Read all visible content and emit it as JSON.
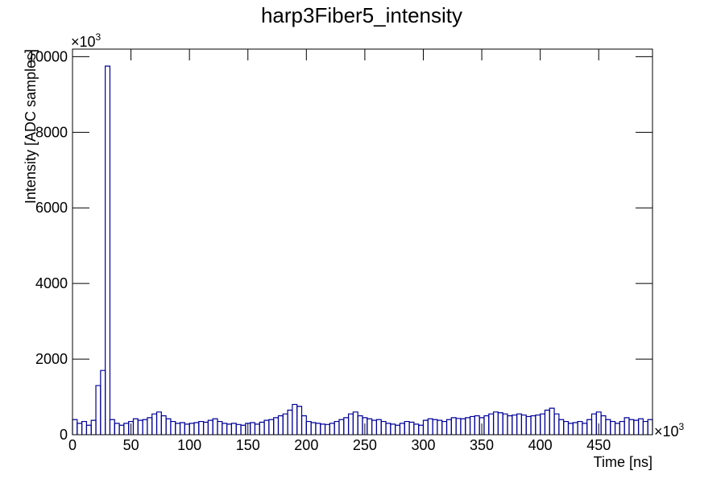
{
  "chart_data": {
    "type": "histogram",
    "title": "harp3Fiber5_intensity",
    "x_label": "Time [ns]",
    "y_label": "Intensity [ADC samples]",
    "x_multiplier": {
      "base": "×10",
      "exponent": "3"
    },
    "y_multiplier": {
      "base": "×10",
      "exponent": "3"
    },
    "color": "#000099",
    "xlim": [
      0,
      496
    ],
    "ylim": [
      0,
      10200
    ],
    "xticks": [
      0,
      50,
      100,
      150,
      200,
      250,
      300,
      350,
      400,
      450
    ],
    "yticks": [
      0,
      2000,
      4000,
      6000,
      8000,
      10000
    ],
    "bins": [
      0,
      4,
      8,
      12,
      16,
      20,
      24,
      28,
      32,
      36,
      40,
      44,
      48,
      52,
      56,
      60,
      64,
      68,
      72,
      76,
      80,
      84,
      88,
      92,
      96,
      100,
      104,
      108,
      112,
      116,
      120,
      124,
      128,
      132,
      136,
      140,
      144,
      148,
      152,
      156,
      160,
      164,
      168,
      172,
      176,
      180,
      184,
      188,
      192,
      196,
      200,
      204,
      208,
      212,
      216,
      220,
      224,
      228,
      232,
      236,
      240,
      244,
      248,
      252,
      256,
      260,
      264,
      268,
      272,
      276,
      280,
      284,
      288,
      292,
      296,
      300,
      304,
      308,
      312,
      316,
      320,
      324,
      328,
      332,
      336,
      340,
      344,
      348,
      352,
      356,
      360,
      364,
      368,
      372,
      376,
      380,
      384,
      388,
      392,
      396,
      400,
      404,
      408,
      412,
      416,
      420,
      424,
      428,
      432,
      436,
      440,
      444,
      448,
      452,
      456,
      460,
      464,
      468,
      472,
      476,
      480,
      484,
      488,
      492,
      496
    ],
    "values": [
      400,
      300,
      350,
      250,
      380,
      1300,
      1700,
      9750,
      400,
      300,
      250,
      300,
      350,
      420,
      380,
      400,
      450,
      550,
      600,
      500,
      420,
      350,
      300,
      320,
      280,
      300,
      320,
      350,
      330,
      380,
      420,
      350,
      300,
      280,
      300,
      270,
      250,
      300,
      320,
      280,
      330,
      380,
      400,
      450,
      500,
      550,
      650,
      800,
      750,
      500,
      350,
      320,
      300,
      280,
      270,
      300,
      350,
      400,
      450,
      550,
      600,
      500,
      450,
      420,
      380,
      400,
      350,
      300,
      280,
      250,
      300,
      350,
      330,
      280,
      250,
      380,
      420,
      400,
      380,
      350,
      400,
      450,
      430,
      420,
      450,
      480,
      500,
      450,
      500,
      550,
      600,
      580,
      550,
      500,
      520,
      550,
      520,
      480,
      500,
      520,
      550,
      650,
      700,
      550,
      400,
      350,
      300,
      320,
      350,
      300,
      400,
      550,
      600,
      500,
      400,
      350,
      300,
      350,
      450,
      400,
      380,
      420,
      350,
      400
    ]
  }
}
